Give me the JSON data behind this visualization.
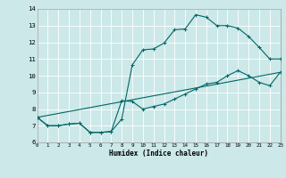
{
  "title": "",
  "xlabel": "Humidex (Indice chaleur)",
  "ylabel": "",
  "bg_color": "#cce8e8",
  "line_color": "#006666",
  "grid_color": "#ffffff",
  "ylim": [
    6,
    14
  ],
  "xlim": [
    0,
    23
  ],
  "yticks": [
    6,
    7,
    8,
    9,
    10,
    11,
    12,
    13,
    14
  ],
  "xticks": [
    0,
    1,
    2,
    3,
    4,
    5,
    6,
    7,
    8,
    9,
    10,
    11,
    12,
    13,
    14,
    15,
    16,
    17,
    18,
    19,
    20,
    21,
    22,
    23
  ],
  "line1_x": [
    0,
    1,
    2,
    3,
    4,
    5,
    6,
    7,
    8,
    9,
    10,
    11,
    12,
    13,
    14,
    15,
    16,
    17,
    18,
    19,
    20,
    21,
    22,
    23
  ],
  "line1_y": [
    7.5,
    7.0,
    7.0,
    7.1,
    7.15,
    6.6,
    6.6,
    6.65,
    8.5,
    8.45,
    8.0,
    8.15,
    8.3,
    8.6,
    8.9,
    9.2,
    9.5,
    9.6,
    10.0,
    10.3,
    10.0,
    9.6,
    9.4,
    10.2
  ],
  "line2_x": [
    0,
    1,
    2,
    3,
    4,
    5,
    6,
    7,
    8,
    9,
    10,
    11,
    12,
    13,
    14,
    15,
    16,
    17,
    18,
    19,
    20,
    21,
    22,
    23
  ],
  "line2_y": [
    7.5,
    7.0,
    7.0,
    7.1,
    7.15,
    6.6,
    6.6,
    6.65,
    7.4,
    10.65,
    11.55,
    11.6,
    11.95,
    12.75,
    12.8,
    13.65,
    13.5,
    13.0,
    13.0,
    12.85,
    12.35,
    11.7,
    11.0,
    11.0
  ],
  "line3_x": [
    0,
    23
  ],
  "line3_y": [
    7.5,
    10.2
  ],
  "xlabel_fontsize": 5.5,
  "xtick_fontsize": 4.2,
  "ytick_fontsize": 5.2
}
